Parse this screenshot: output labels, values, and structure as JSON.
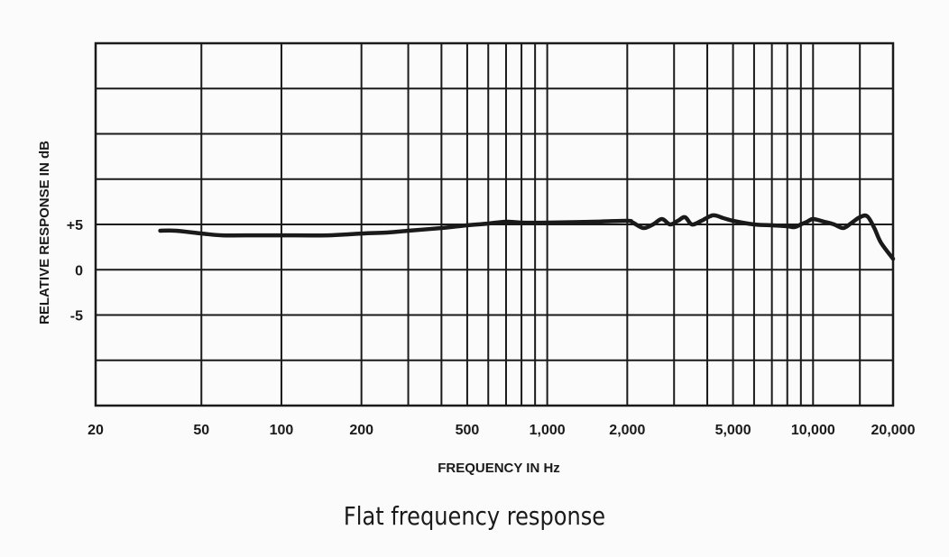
{
  "caption": "Flat frequency response",
  "chart_data": {
    "type": "line",
    "title": "",
    "xlabel": "FREQUENCY IN Hz",
    "ylabel": "RELATIVE RESPONSE IN dB",
    "xscale": "log",
    "xlim": [
      20,
      20000
    ],
    "ylim": [
      -15,
      25
    ],
    "grid": true,
    "x_tick_labels": [
      {
        "value": 20,
        "label": "20"
      },
      {
        "value": 50,
        "label": "50"
      },
      {
        "value": 100,
        "label": "100"
      },
      {
        "value": 200,
        "label": "200"
      },
      {
        "value": 500,
        "label": "500"
      },
      {
        "value": 1000,
        "label": "1,000"
      },
      {
        "value": 2000,
        "label": "2,000"
      },
      {
        "value": 5000,
        "label": "5,000"
      },
      {
        "value": 10000,
        "label": "10,000"
      },
      {
        "value": 20000,
        "label": "20,000"
      }
    ],
    "x_grid_values": [
      20,
      50,
      100,
      200,
      300,
      400,
      500,
      600,
      700,
      800,
      900,
      1000,
      2000,
      3000,
      4000,
      5000,
      6000,
      7000,
      8000,
      9000,
      10000,
      15000,
      20000
    ],
    "y_tick_labels": [
      {
        "value": 5,
        "label": "+5"
      },
      {
        "value": 0,
        "label": "0"
      },
      {
        "value": -5,
        "label": "-5"
      }
    ],
    "y_grid_values": [
      -15,
      -10,
      -5,
      0,
      5,
      10,
      15,
      20,
      25
    ],
    "series": [
      {
        "color": "#1a1a1a",
        "x": [
          35,
          40,
          50,
          60,
          80,
          100,
          150,
          200,
          250,
          300,
          400,
          500,
          600,
          700,
          800,
          1000,
          1500,
          2000,
          2100,
          2300,
          2500,
          2700,
          2900,
          3100,
          3300,
          3500,
          3800,
          4200,
          4600,
          5000,
          6000,
          7000,
          8000,
          8500,
          9000,
          9500,
          10000,
          11000,
          12000,
          13000,
          14000,
          15000,
          16000,
          17000,
          18000,
          20000
        ],
        "y": [
          4.3,
          4.3,
          4.0,
          3.8,
          3.8,
          3.8,
          3.8,
          4.0,
          4.1,
          4.3,
          4.6,
          4.9,
          5.1,
          5.3,
          5.2,
          5.2,
          5.3,
          5.4,
          5.2,
          4.6,
          5.0,
          5.6,
          5.0,
          5.4,
          5.8,
          5.0,
          5.4,
          6.0,
          5.7,
          5.4,
          5.0,
          4.9,
          4.8,
          4.7,
          5.0,
          5.3,
          5.6,
          5.3,
          5.0,
          4.6,
          5.2,
          5.8,
          5.9,
          4.6,
          3.0,
          1.2
        ]
      }
    ]
  }
}
